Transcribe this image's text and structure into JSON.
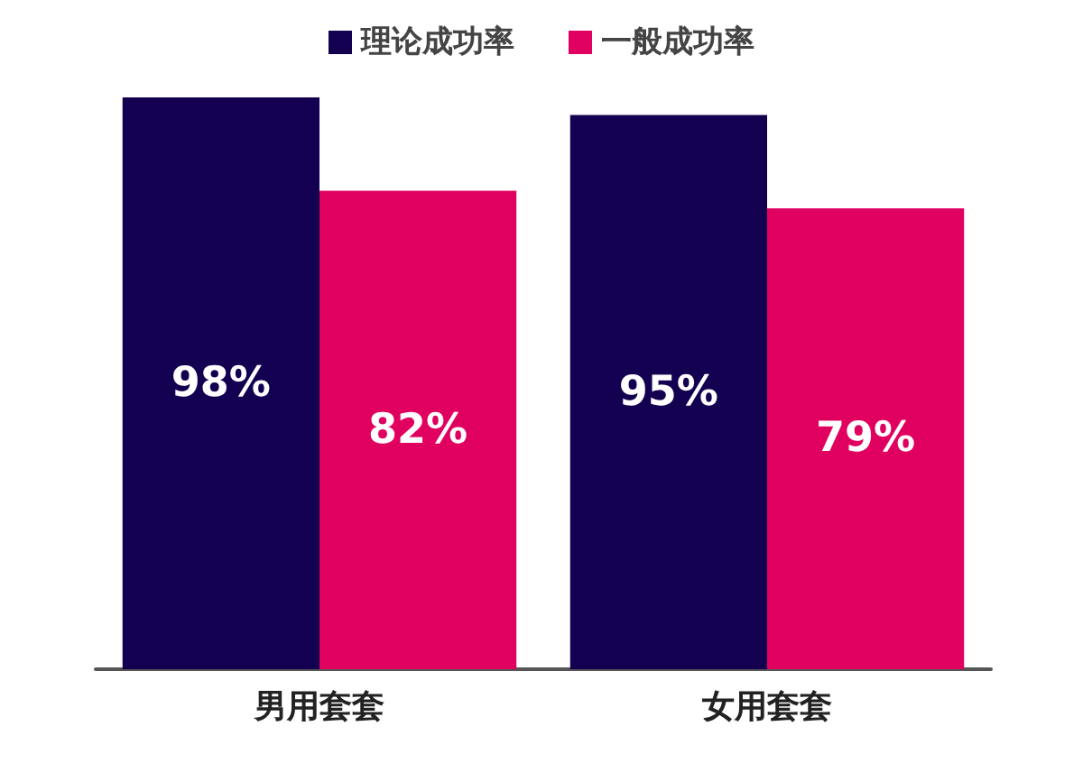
{
  "chart_data": {
    "type": "bar",
    "categories": [
      "男用套套",
      "女用套套"
    ],
    "series": [
      {
        "name": "理论成功率",
        "color": "#140050",
        "values": [
          98,
          95
        ],
        "value_labels": [
          "98%",
          "95%"
        ]
      },
      {
        "name": "一般成功率",
        "color": "#e0005f",
        "values": [
          82,
          79
        ],
        "value_labels": [
          "82%",
          "79%"
        ]
      }
    ],
    "legend": "top",
    "grid": false
  }
}
